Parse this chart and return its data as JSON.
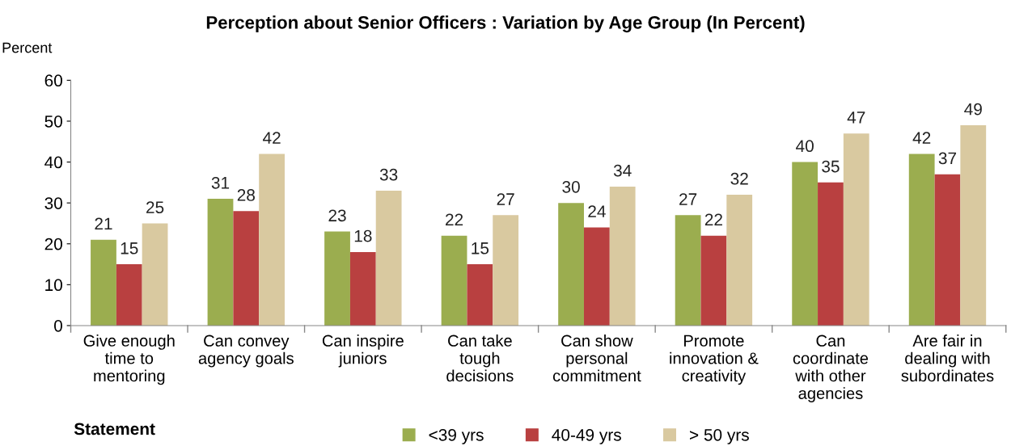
{
  "chart_data": {
    "type": "bar",
    "title": "Perception about Senior Officers : Variation by Age Group (In Percent)",
    "ylabel": "Percent",
    "xlabel": "Statement",
    "categories": [
      "Give enough\ntime to\nmentoring",
      "Can convey\nagency goals",
      "Can inspire\njuniors",
      "Can take\ntough\ndecisions",
      "Can show\npersonal\ncommitment",
      "Promote\ninnovation &\ncreativity",
      "Can\ncoordinate\nwith other\nagencies",
      "Are fair in\ndealing with\nsubordinates"
    ],
    "series": [
      {
        "name": "<39 yrs",
        "color": "#9bad4f",
        "values": [
          21,
          31,
          23,
          22,
          30,
          27,
          40,
          42
        ]
      },
      {
        "name": "40-49 yrs",
        "color": "#b94040",
        "values": [
          15,
          28,
          18,
          15,
          24,
          22,
          35,
          37
        ]
      },
      {
        "name": "> 50 yrs",
        "color": "#d9c9a0",
        "values": [
          25,
          42,
          33,
          27,
          34,
          32,
          47,
          49
        ]
      }
    ],
    "ylim": [
      0,
      60
    ],
    "yticks": [
      0,
      10,
      20,
      30,
      40,
      50,
      60
    ],
    "data_labels": true,
    "grid": false,
    "legend": "bottom"
  }
}
